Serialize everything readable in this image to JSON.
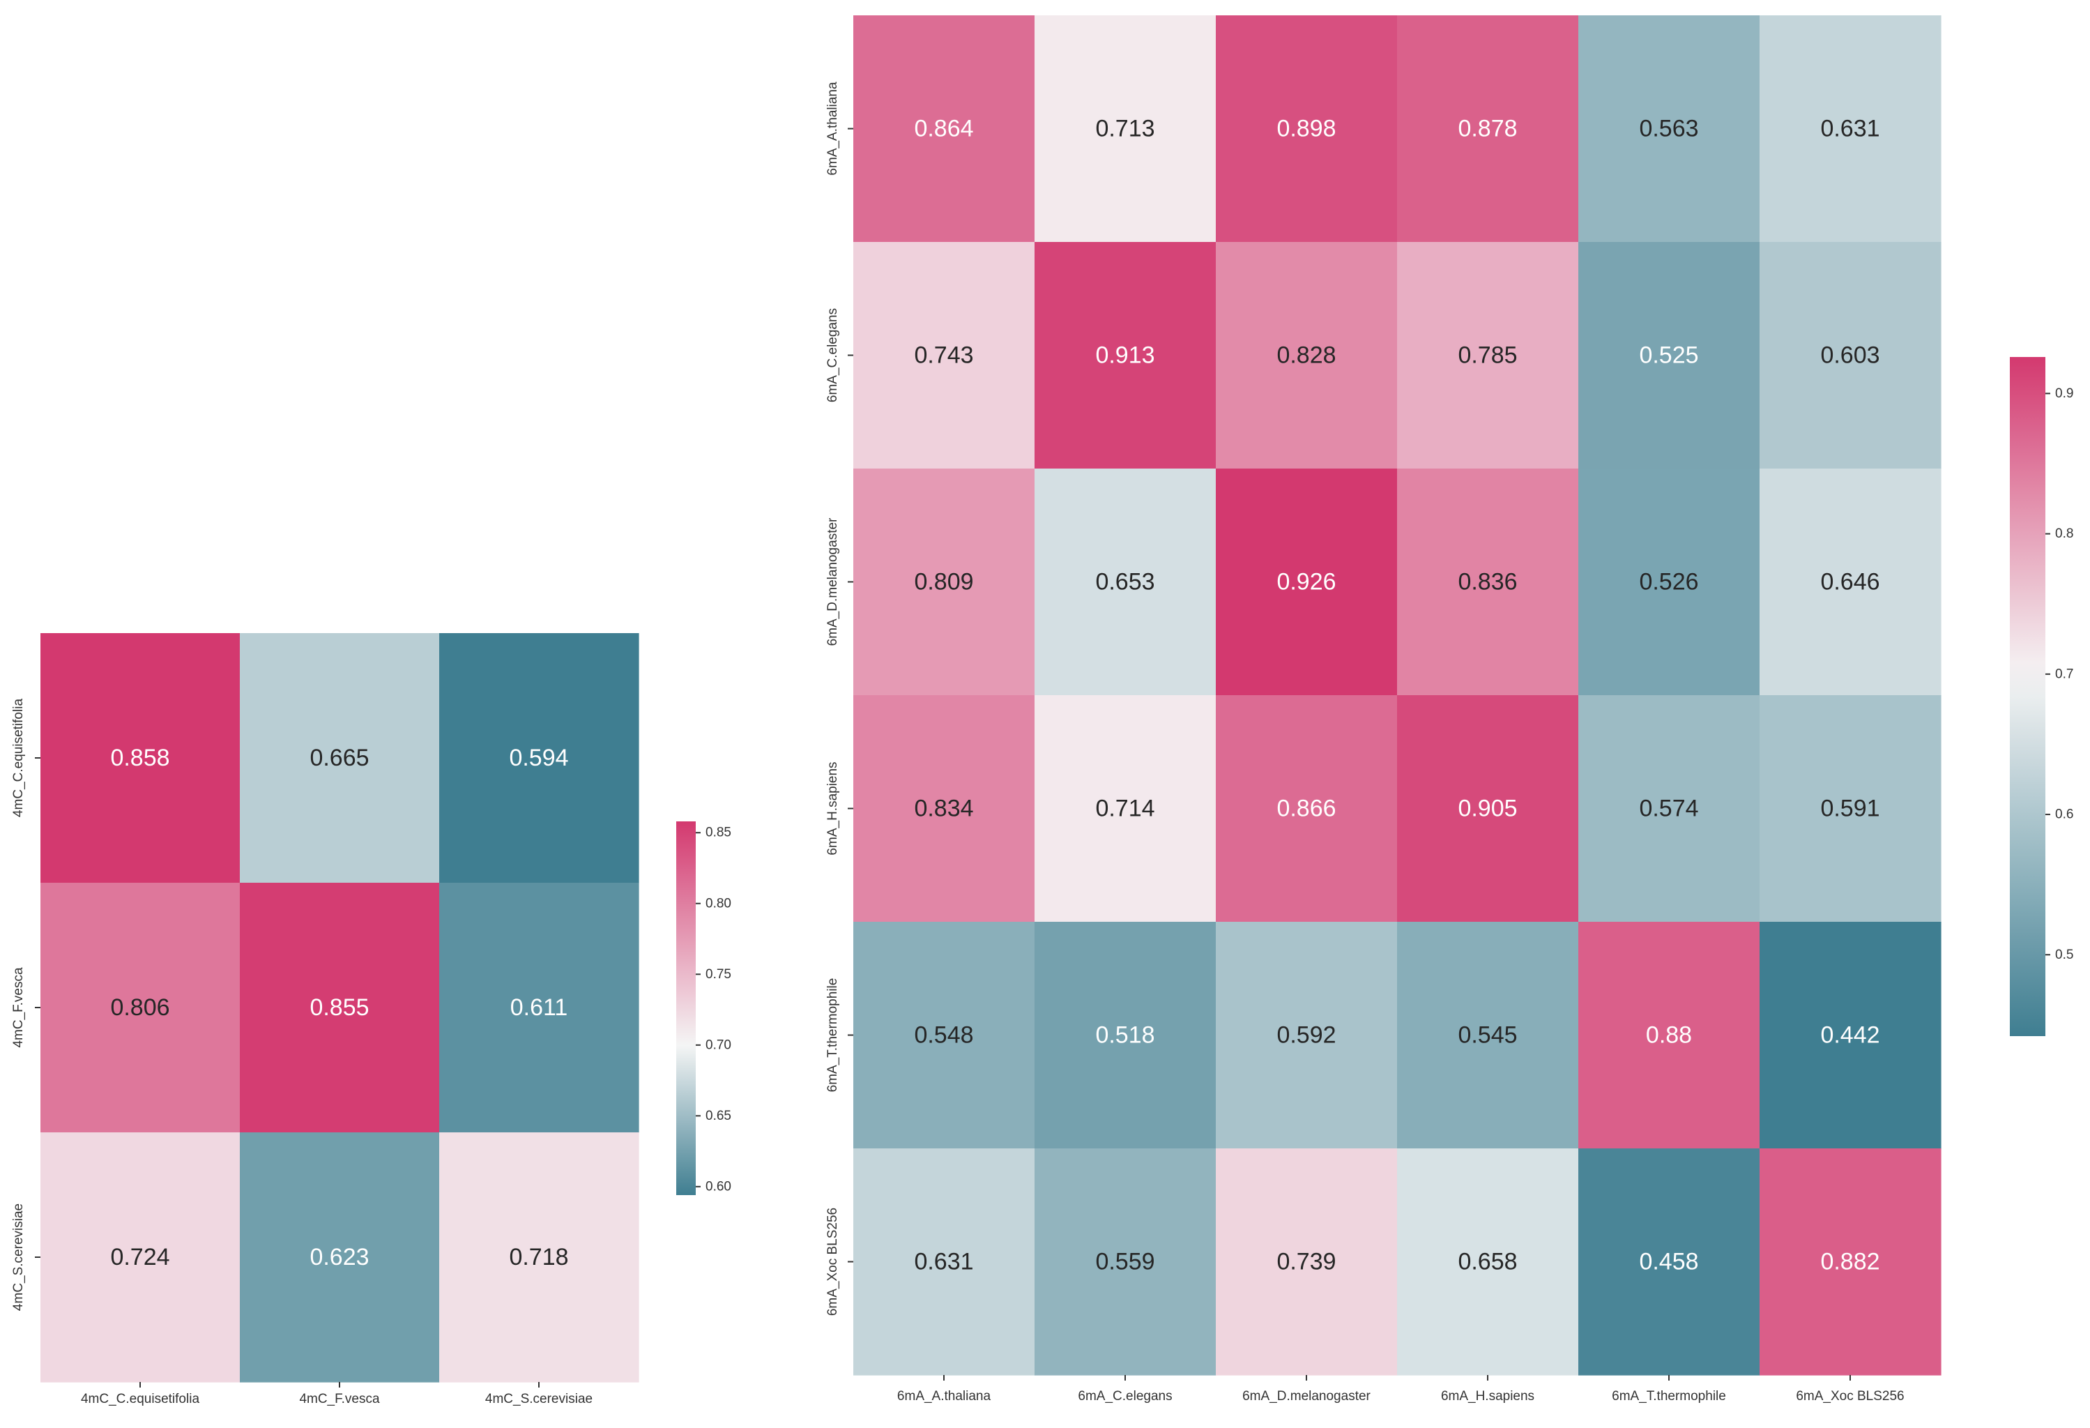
{
  "colors": {
    "low": "#3f7e91",
    "mid": "#f5f5f5",
    "high": "#d3396f",
    "text_dark": "#262626",
    "text_light": "#ffffff",
    "tick": "#333333"
  },
  "chart_data": [
    {
      "type": "heatmap",
      "title": "",
      "rows": [
        "4mC_C.equisetifolia",
        "4mC_F.vesca",
        "4mC_S.cerevisiae"
      ],
      "columns": [
        "4mC_C.equisetifolia",
        "4mC_F.vesca",
        "4mC_S.cerevisiae"
      ],
      "values": [
        [
          0.858,
          0.665,
          0.594
        ],
        [
          0.806,
          0.855,
          0.611
        ],
        [
          0.724,
          0.623,
          0.718
        ]
      ],
      "labels": [
        [
          "0.858",
          "0.665",
          "0.594"
        ],
        [
          "0.806",
          "0.855",
          "0.611"
        ],
        [
          "0.724",
          "0.623",
          "0.718"
        ]
      ],
      "colorbar": {
        "range": [
          0.594,
          0.858
        ],
        "ticks": [
          0.6,
          0.65,
          0.7,
          0.75,
          0.8,
          0.85
        ],
        "tick_labels": [
          "0.60",
          "0.65",
          "0.70",
          "0.75",
          "0.80",
          "0.85"
        ],
        "center": 0.7
      }
    },
    {
      "type": "heatmap",
      "title": "",
      "rows": [
        "6mA_A.thaliana",
        "6mA_C.elegans",
        "6mA_D.melanogaster",
        "6mA_H.sapiens",
        "6mA_T.thermophile",
        "6mA_Xoc BLS256"
      ],
      "columns": [
        "6mA_A.thaliana",
        "6mA_C.elegans",
        "6mA_D.melanogaster",
        "6mA_H.sapiens",
        "6mA_T.thermophile",
        "6mA_Xoc BLS256"
      ],
      "values": [
        [
          0.864,
          0.713,
          0.898,
          0.878,
          0.563,
          0.631
        ],
        [
          0.743,
          0.913,
          0.828,
          0.785,
          0.525,
          0.603
        ],
        [
          0.809,
          0.653,
          0.926,
          0.836,
          0.526,
          0.646
        ],
        [
          0.834,
          0.714,
          0.866,
          0.905,
          0.574,
          0.591
        ],
        [
          0.548,
          0.518,
          0.592,
          0.545,
          0.88,
          0.442
        ],
        [
          0.631,
          0.559,
          0.739,
          0.658,
          0.458,
          0.882
        ]
      ],
      "labels": [
        [
          "0.864",
          "0.713",
          "0.898",
          "0.878",
          "0.563",
          "0.631"
        ],
        [
          "0.743",
          "0.913",
          "0.828",
          "0.785",
          "0.525",
          "0.603"
        ],
        [
          "0.809",
          "0.653",
          "0.926",
          "0.836",
          "0.526",
          "0.646"
        ],
        [
          "0.834",
          "0.714",
          "0.866",
          "0.905",
          "0.574",
          "0.591"
        ],
        [
          "0.548",
          "0.518",
          "0.592",
          "0.545",
          "0.88",
          "0.442"
        ],
        [
          "0.631",
          "0.559",
          "0.739",
          "0.658",
          "0.458",
          "0.882"
        ]
      ],
      "colorbar": {
        "range": [
          0.442,
          0.926
        ],
        "ticks": [
          0.5,
          0.6,
          0.7,
          0.8,
          0.9
        ],
        "tick_labels": [
          "0.5",
          "0.6",
          "0.7",
          "0.8",
          "0.9"
        ],
        "center": 0.7
      }
    }
  ]
}
